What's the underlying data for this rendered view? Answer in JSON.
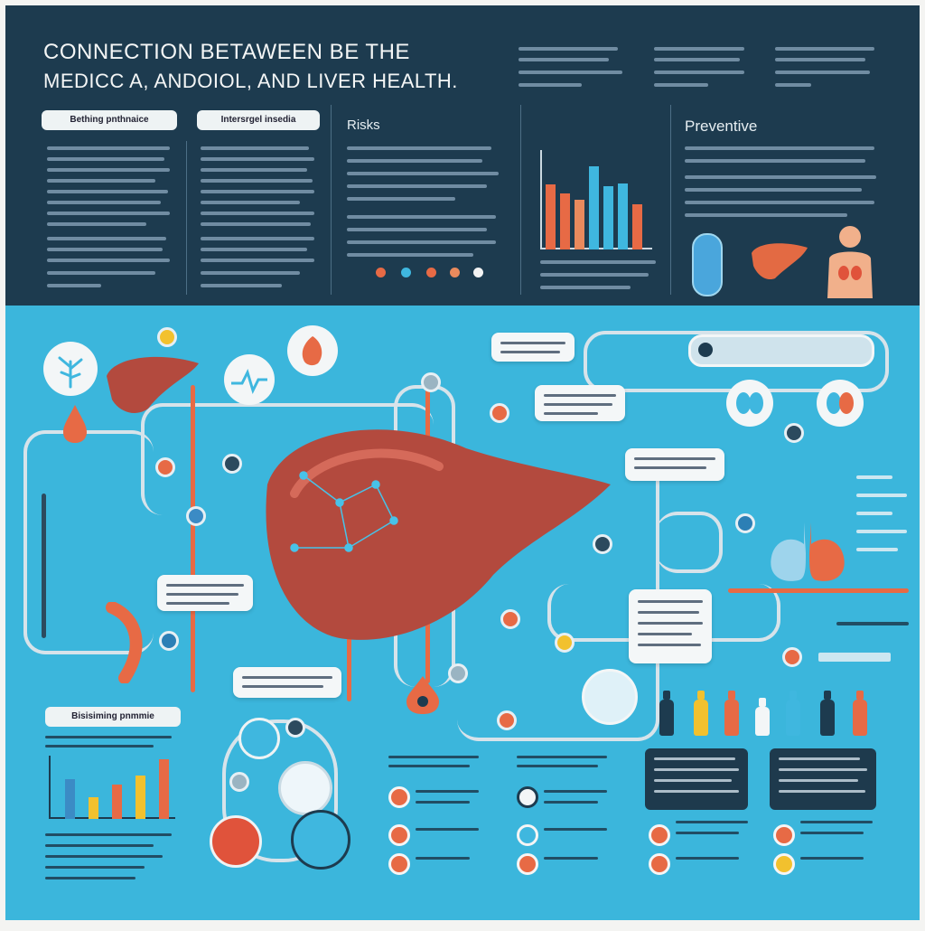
{
  "header": {
    "title_line1": "Connection betaween be the",
    "title_line2": "medicc a, andoiol, and liver health."
  },
  "left_pills": [
    "Bething pnthnaice",
    "Intersrgel insedia"
  ],
  "sections": {
    "risks": "Risks",
    "preventive": "Preventive"
  },
  "bottom_pill": "Bisisiming pnmmie",
  "colors": {
    "header_bg": "#1d3b4f",
    "main_bg": "#3bb6dc",
    "accent_orange": "#e76a45",
    "accent_blue": "#3fb7df",
    "liver": "#b34a3e",
    "yellow": "#f2c12e"
  },
  "icons": [
    "liver-icon",
    "pill-capsule-icon",
    "human-torso-icon",
    "lungs-icon",
    "kidney-icon",
    "water-drop-icon",
    "bottle-icon",
    "tree-icon",
    "heartbeat-icon",
    "microbe-icon"
  ]
}
